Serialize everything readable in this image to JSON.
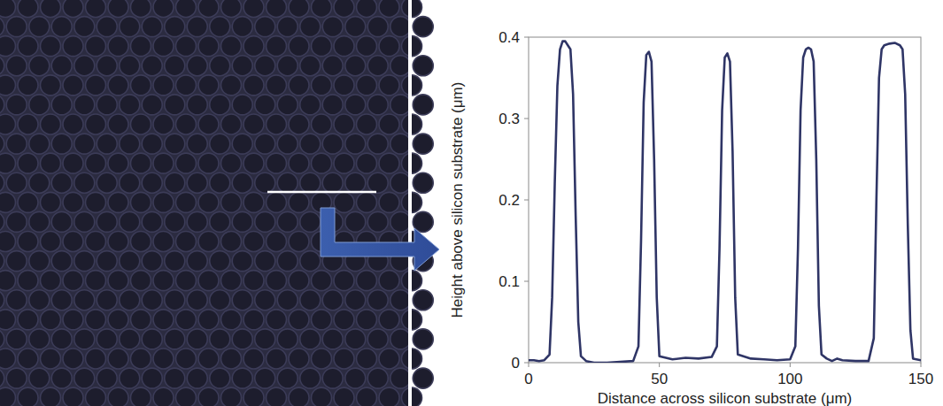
{
  "chart_data": {
    "type": "line",
    "x_label": "Distance across silicon substrate (μm)",
    "y_label": "Height above silicon substrate (μm)",
    "x": [
      0,
      2,
      4,
      6,
      8,
      9,
      10,
      11,
      12,
      13,
      14,
      15,
      16,
      17,
      18,
      19,
      20,
      22,
      25,
      30,
      35,
      40,
      42,
      43,
      44,
      45,
      46,
      47,
      48,
      49,
      50,
      55,
      60,
      65,
      70,
      72,
      73,
      74,
      75,
      76,
      77,
      78,
      79,
      80,
      85,
      90,
      95,
      100,
      102,
      103,
      104,
      105,
      106,
      107,
      108,
      109,
      110,
      111,
      112,
      114,
      116,
      118,
      120,
      125,
      130,
      132,
      133,
      134,
      135,
      136,
      138,
      140,
      142,
      143,
      144,
      145,
      146,
      147,
      150
    ],
    "values": [
      0.003,
      0.003,
      0.002,
      0.003,
      0.01,
      0.08,
      0.22,
      0.34,
      0.385,
      0.395,
      0.395,
      0.39,
      0.385,
      0.33,
      0.18,
      0.05,
      0.008,
      0.002,
      0,
      0,
      0.001,
      0.002,
      0.02,
      0.15,
      0.32,
      0.378,
      0.382,
      0.37,
      0.25,
      0.08,
      0.008,
      0.004,
      0.006,
      0.005,
      0.007,
      0.02,
      0.14,
      0.31,
      0.375,
      0.38,
      0.37,
      0.26,
      0.08,
      0.01,
      0.005,
      0.004,
      0.003,
      0.004,
      0.02,
      0.14,
      0.31,
      0.375,
      0.385,
      0.387,
      0.385,
      0.37,
      0.25,
      0.07,
      0.01,
      0.005,
      0.002,
      0.005,
      0.003,
      0.002,
      0.002,
      0.03,
      0.2,
      0.35,
      0.385,
      0.39,
      0.392,
      0.393,
      0.39,
      0.385,
      0.33,
      0.17,
      0.04,
      0.005,
      0.003
    ],
    "color": "#2f3566",
    "xlim": [
      0,
      150
    ],
    "xticks": [
      0,
      50,
      100,
      150
    ],
    "ylim": [
      0,
      0.4
    ],
    "yticks": [
      0,
      0.1,
      0.2,
      0.3,
      0.4
    ],
    "grid": false
  }
}
